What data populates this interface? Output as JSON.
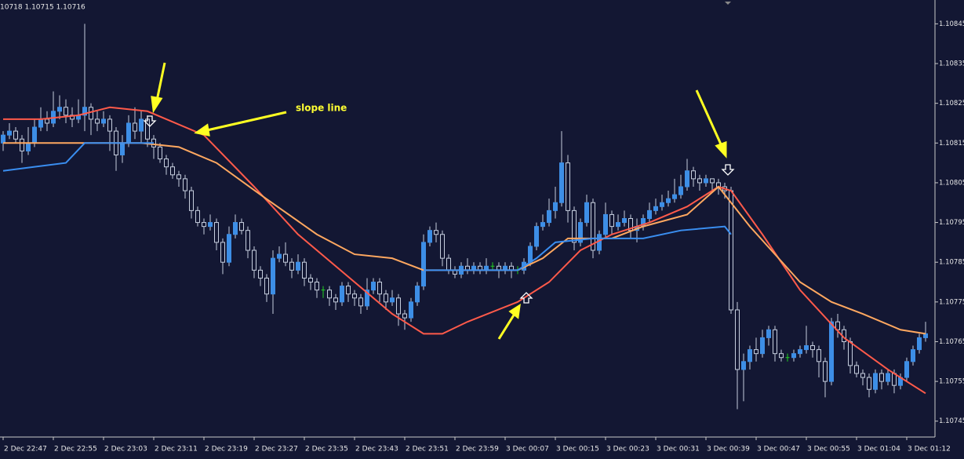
{
  "chart_data": {
    "type": "candlestick",
    "info_text": "10718 1.10715 1.10716",
    "annotation": "slope line",
    "xlim": [
      -0.5,
      148.5
    ],
    "ylim": [
      1.10741,
      1.10851
    ],
    "yticks": [
      1.10845,
      1.10835,
      1.10825,
      1.10815,
      1.10805,
      1.10795,
      1.10785,
      1.10775,
      1.10765,
      1.10755,
      1.10745
    ],
    "xticks": [
      {
        "value": 0,
        "label": "2 Dec 22:47"
      },
      {
        "value": 8,
        "label": "2 Dec 22:55"
      },
      {
        "value": 16,
        "label": "2 Dec 23:03"
      },
      {
        "value": 24,
        "label": "2 Dec 23:11"
      },
      {
        "value": 32,
        "label": "2 Dec 23:19"
      },
      {
        "value": 40,
        "label": "2 Dec 23:27"
      },
      {
        "value": 48,
        "label": "2 Dec 23:35"
      },
      {
        "value": 56,
        "label": "2 Dec 23:43"
      },
      {
        "value": 64,
        "label": "2 Dec 23:51"
      },
      {
        "value": 72,
        "label": "2 Dec 23:59"
      },
      {
        "value": 80,
        "label": "3 Dec 00:07"
      },
      {
        "value": 88,
        "label": "3 Dec 00:15"
      },
      {
        "value": 96,
        "label": "3 Dec 00:23"
      },
      {
        "value": 104,
        "label": "3 Dec 00:31"
      },
      {
        "value": 112,
        "label": "3 Dec 00:39"
      },
      {
        "value": 120,
        "label": "3 Dec 00:47"
      },
      {
        "value": 128,
        "label": "3 Dec 00:55"
      },
      {
        "value": 136,
        "label": "3 Dec 01:04"
      },
      {
        "value": 144,
        "label": "3 Dec 01:12"
      }
    ],
    "up_color": "#3d8ee6",
    "down_color": "#c6cede",
    "doji_color": "#22d022",
    "open": [
      1.10815,
      1.10817,
      1.10818,
      1.10816,
      1.10813,
      1.10815,
      1.10819,
      1.10821,
      1.1082,
      1.10823,
      1.10824,
      1.10822,
      1.10821,
      1.10822,
      1.10824,
      1.10821,
      1.1082,
      1.10821,
      1.10818,
      1.10812,
      1.10815,
      1.1082,
      1.10818,
      1.10821,
      1.10816,
      1.10814,
      1.10811,
      1.10809,
      1.10807,
      1.10806,
      1.10803,
      1.10798,
      1.10795,
      1.10794,
      1.10795,
      1.1079,
      1.10785,
      1.10792,
      1.10795,
      1.10793,
      1.10788,
      1.10783,
      1.10781,
      1.10777,
      1.10786,
      1.10787,
      1.10785,
      1.10783,
      1.10785,
      1.10781,
      1.1078,
      1.10778,
      1.10778,
      1.10776,
      1.10775,
      1.10779,
      1.10777,
      1.10776,
      1.10774,
      1.10778,
      1.1078,
      1.10777,
      1.10775,
      1.10776,
      1.10772,
      1.10771,
      1.10775,
      1.10779,
      1.1079,
      1.10793,
      1.10792,
      1.10786,
      1.10783,
      1.10782,
      1.10784,
      1.10783,
      1.10784,
      1.10783,
      1.10784,
      1.10784,
      1.10783,
      1.10784,
      1.10783,
      1.10783,
      1.10785,
      1.10789,
      1.10794,
      1.10795,
      1.10798,
      1.108,
      1.1081,
      1.10798,
      1.1079,
      1.10795,
      1.108,
      1.10788,
      1.10792,
      1.10797,
      1.10794,
      1.10795,
      1.10796,
      1.10793,
      1.10794,
      1.10796,
      1.10798,
      1.10799,
      1.108,
      1.10801,
      1.10802,
      1.10804,
      1.10808,
      1.10806,
      1.10805,
      1.10806,
      1.10805,
      1.10804,
      1.10803,
      1.10773,
      1.10758,
      1.1076,
      1.10763,
      1.10762,
      1.10766,
      1.10768,
      1.10762,
      1.10761,
      1.10761,
      1.10762,
      1.10763,
      1.10764,
      1.10763,
      1.1076,
      1.10755,
      1.1077,
      1.10768,
      1.10765,
      1.10759,
      1.10757,
      1.10756,
      1.10753,
      1.10757,
      1.10755,
      1.10757,
      1.10754,
      1.10756,
      1.1076,
      1.10763,
      1.10766
    ],
    "high": [
      1.10818,
      1.1082,
      1.10819,
      1.10817,
      1.10819,
      1.10821,
      1.10824,
      1.10823,
      1.10828,
      1.10827,
      1.10826,
      1.10824,
      1.10826,
      1.10845,
      1.10825,
      1.10823,
      1.10823,
      1.10822,
      1.10819,
      1.10817,
      1.10822,
      1.10824,
      1.10823,
      1.10822,
      1.10817,
      1.10815,
      1.10812,
      1.1081,
      1.10808,
      1.10807,
      1.10804,
      1.10799,
      1.10796,
      1.10797,
      1.10796,
      1.10791,
      1.10794,
      1.10797,
      1.10796,
      1.10794,
      1.10789,
      1.10784,
      1.10782,
      1.10788,
      1.10789,
      1.1079,
      1.10786,
      1.10787,
      1.10786,
      1.10782,
      1.10781,
      1.10779,
      1.10779,
      1.10777,
      1.1078,
      1.1078,
      1.10778,
      1.10777,
      1.10781,
      1.10781,
      1.10781,
      1.10778,
      1.10778,
      1.10777,
      1.10773,
      1.10776,
      1.1078,
      1.10792,
      1.10794,
      1.10795,
      1.10793,
      1.10787,
      1.10784,
      1.10785,
      1.10786,
      1.10785,
      1.10785,
      1.10786,
      1.10785,
      1.10785,
      1.10785,
      1.10785,
      1.10784,
      1.10786,
      1.1079,
      1.10795,
      1.10797,
      1.10801,
      1.10804,
      1.10818,
      1.10812,
      1.10799,
      1.10796,
      1.10802,
      1.10801,
      1.10793,
      1.108,
      1.10798,
      1.10797,
      1.10798,
      1.10797,
      1.10796,
      1.10797,
      1.108,
      1.10801,
      1.10802,
      1.10803,
      1.10806,
      1.10807,
      1.10811,
      1.10809,
      1.10807,
      1.10807,
      1.10806,
      1.10806,
      1.10805,
      1.10804,
      1.10775,
      1.10762,
      1.10764,
      1.10766,
      1.10768,
      1.10769,
      1.10769,
      1.10763,
      1.10762,
      1.10763,
      1.10764,
      1.10769,
      1.10765,
      1.10764,
      1.10761,
      1.10771,
      1.10772,
      1.10769,
      1.10766,
      1.1076,
      1.10758,
      1.10757,
      1.10758,
      1.10758,
      1.10758,
      1.10758,
      1.10757,
      1.10761,
      1.10764,
      1.10767,
      1.1077
    ],
    "low": [
      1.10813,
      1.10816,
      1.10815,
      1.1081,
      1.10812,
      1.10814,
      1.10818,
      1.10818,
      1.10819,
      1.10821,
      1.1082,
      1.10819,
      1.1082,
      1.10818,
      1.10817,
      1.10818,
      1.10819,
      1.10813,
      1.10808,
      1.1081,
      1.10814,
      1.10816,
      1.10815,
      1.10814,
      1.10811,
      1.1081,
      1.10807,
      1.10806,
      1.10804,
      1.10801,
      1.10796,
      1.10794,
      1.10792,
      1.10793,
      1.10788,
      1.10782,
      1.10784,
      1.10791,
      1.10792,
      1.10786,
      1.10781,
      1.10779,
      1.10775,
      1.10772,
      1.10785,
      1.10784,
      1.10781,
      1.10782,
      1.10779,
      1.10778,
      1.10776,
      1.10776,
      1.10774,
      1.10773,
      1.10774,
      1.10775,
      1.10774,
      1.10772,
      1.10773,
      1.10777,
      1.10775,
      1.10773,
      1.10774,
      1.10769,
      1.10768,
      1.1077,
      1.10774,
      1.10778,
      1.10789,
      1.1079,
      1.10784,
      1.10782,
      1.10781,
      1.10781,
      1.10782,
      1.10782,
      1.10782,
      1.10782,
      1.10783,
      1.10781,
      1.10782,
      1.10781,
      1.10782,
      1.10782,
      1.10784,
      1.10788,
      1.10793,
      1.10794,
      1.10796,
      1.10799,
      1.10795,
      1.10788,
      1.10789,
      1.10794,
      1.10786,
      1.10787,
      1.10791,
      1.10792,
      1.10793,
      1.10794,
      1.10791,
      1.1079,
      1.10793,
      1.10795,
      1.10797,
      1.10798,
      1.10799,
      1.108,
      1.10801,
      1.10803,
      1.10804,
      1.10803,
      1.10804,
      1.10803,
      1.10802,
      1.10801,
      1.10772,
      1.10748,
      1.1075,
      1.10758,
      1.1076,
      1.10761,
      1.10764,
      1.1076,
      1.1076,
      1.1076,
      1.1076,
      1.10761,
      1.10762,
      1.10761,
      1.10756,
      1.10751,
      1.10754,
      1.10766,
      1.10763,
      1.10757,
      1.10756,
      1.10754,
      1.10751,
      1.10752,
      1.10753,
      1.10754,
      1.10752,
      1.10753,
      1.10755,
      1.10759,
      1.10762,
      1.10765
    ],
    "close": [
      1.10817,
      1.10818,
      1.10816,
      1.10813,
      1.10815,
      1.10819,
      1.10821,
      1.1082,
      1.10823,
      1.10824,
      1.10822,
      1.10821,
      1.10822,
      1.10824,
      1.10821,
      1.1082,
      1.10821,
      1.10818,
      1.10812,
      1.10815,
      1.1082,
      1.10818,
      1.10821,
      1.10816,
      1.10814,
      1.10811,
      1.10809,
      1.10807,
      1.10806,
      1.10803,
      1.10798,
      1.10795,
      1.10794,
      1.10795,
      1.1079,
      1.10785,
      1.10792,
      1.10795,
      1.10793,
      1.10788,
      1.10783,
      1.10781,
      1.10777,
      1.10786,
      1.10787,
      1.10785,
      1.10783,
      1.10785,
      1.10781,
      1.1078,
      1.10778,
      1.10778,
      1.10776,
      1.10775,
      1.10779,
      1.10777,
      1.10776,
      1.10774,
      1.10778,
      1.1078,
      1.10777,
      1.10775,
      1.10776,
      1.10772,
      1.10771,
      1.10775,
      1.10779,
      1.1079,
      1.10793,
      1.10792,
      1.10786,
      1.10783,
      1.10782,
      1.10784,
      1.10783,
      1.10784,
      1.10783,
      1.10784,
      1.10784,
      1.10783,
      1.10784,
      1.10783,
      1.10783,
      1.10785,
      1.10789,
      1.10794,
      1.10795,
      1.10798,
      1.108,
      1.1081,
      1.10798,
      1.1079,
      1.10795,
      1.108,
      1.10788,
      1.10792,
      1.10797,
      1.10794,
      1.10795,
      1.10796,
      1.10793,
      1.10794,
      1.10796,
      1.10798,
      1.10799,
      1.108,
      1.10801,
      1.10802,
      1.10804,
      1.10808,
      1.10806,
      1.10805,
      1.10806,
      1.10805,
      1.10804,
      1.10803,
      1.10773,
      1.10758,
      1.1076,
      1.10763,
      1.10762,
      1.10766,
      1.10768,
      1.10762,
      1.10761,
      1.10761,
      1.10762,
      1.10763,
      1.10764,
      1.10763,
      1.1076,
      1.10755,
      1.1077,
      1.10768,
      1.10765,
      1.10759,
      1.10757,
      1.10756,
      1.10753,
      1.10757,
      1.10755,
      1.10757,
      1.10754,
      1.10756,
      1.1076,
      1.10763,
      1.10766,
      1.10767
    ],
    "lines": [
      {
        "color": "#ff5a4a",
        "x": [
          0,
          6,
          12,
          17,
          23,
          32,
          40,
          47,
          56,
          62,
          67,
          70,
          74,
          82,
          87,
          92,
          97,
          103,
          109,
          114,
          116,
          121,
          127,
          134,
          141,
          147
        ],
        "values": [
          1.10821,
          1.10821,
          1.10822,
          1.10824,
          1.10823,
          1.10817,
          1.10804,
          1.10792,
          1.1078,
          1.10772,
          1.10767,
          1.10767,
          1.1077,
          1.10775,
          1.1078,
          1.10788,
          1.10792,
          1.10795,
          1.10799,
          1.10804,
          1.10803,
          1.10792,
          1.10778,
          1.10766,
          1.10758,
          1.10752
        ]
      },
      {
        "color": "#ffa860",
        "x": [
          0,
          22,
          28,
          34,
          41,
          50,
          56,
          62,
          67,
          82,
          86,
          90,
          97,
          102,
          109,
          114,
          119,
          127,
          132,
          137,
          143,
          147
        ],
        "values": [
          1.10815,
          1.10815,
          1.10814,
          1.1081,
          1.10802,
          1.10792,
          1.10787,
          1.10786,
          1.10783,
          1.10783,
          1.10786,
          1.10791,
          1.10791,
          1.10794,
          1.10797,
          1.10804,
          1.10794,
          1.1078,
          1.10775,
          1.10772,
          1.10768,
          1.10767
        ]
      },
      {
        "color": "#3a8ef0",
        "x": [
          0,
          5,
          10,
          13,
          24,
          45,
          67,
          82,
          85,
          88,
          94,
          102,
          108,
          115,
          116
        ],
        "values": [
          1.10808,
          1.10809,
          1.1081,
          1.10815,
          1.10815,
          null,
          1.10783,
          1.10783,
          1.10786,
          1.1079,
          1.10791,
          1.10791,
          1.10793,
          1.10794,
          1.10792
        ]
      }
    ]
  }
}
